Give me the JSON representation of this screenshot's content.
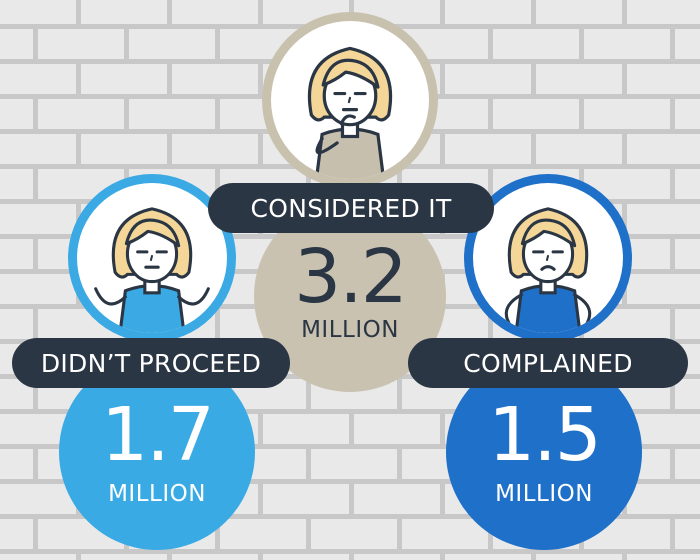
{
  "figures": [
    {
      "id": "considered",
      "label": "CONSIDERED IT",
      "value": "3.2",
      "unit": "MILLION",
      "expression": "thinking",
      "shirt_color": "#c6bfae",
      "ring_color": "#c8c1ae",
      "value_bg": "#c9c2b1",
      "value_text_color": "#2b3644"
    },
    {
      "id": "didnt-proceed",
      "label": "DIDN’T PROCEED",
      "value": "1.7",
      "unit": "MILLION",
      "expression": "shrug",
      "shirt_color": "#3aa9e4",
      "ring_color": "#3aa9e4",
      "value_bg": "#3aaae4",
      "value_text_color": "#ffffff"
    },
    {
      "id": "complained",
      "label": "COMPLAINED",
      "value": "1.5",
      "unit": "MILLION",
      "expression": "frown",
      "shirt_color": "#1f70c9",
      "ring_color": "#1f70c9",
      "value_bg": "#1f70c9",
      "value_text_color": "#ffffff"
    }
  ],
  "colors": {
    "brick": "#e9e9e9",
    "mortar": "#c8c8c8",
    "hair": "#f3d698",
    "skin": "#ffffff",
    "outline": "#2b3644"
  }
}
